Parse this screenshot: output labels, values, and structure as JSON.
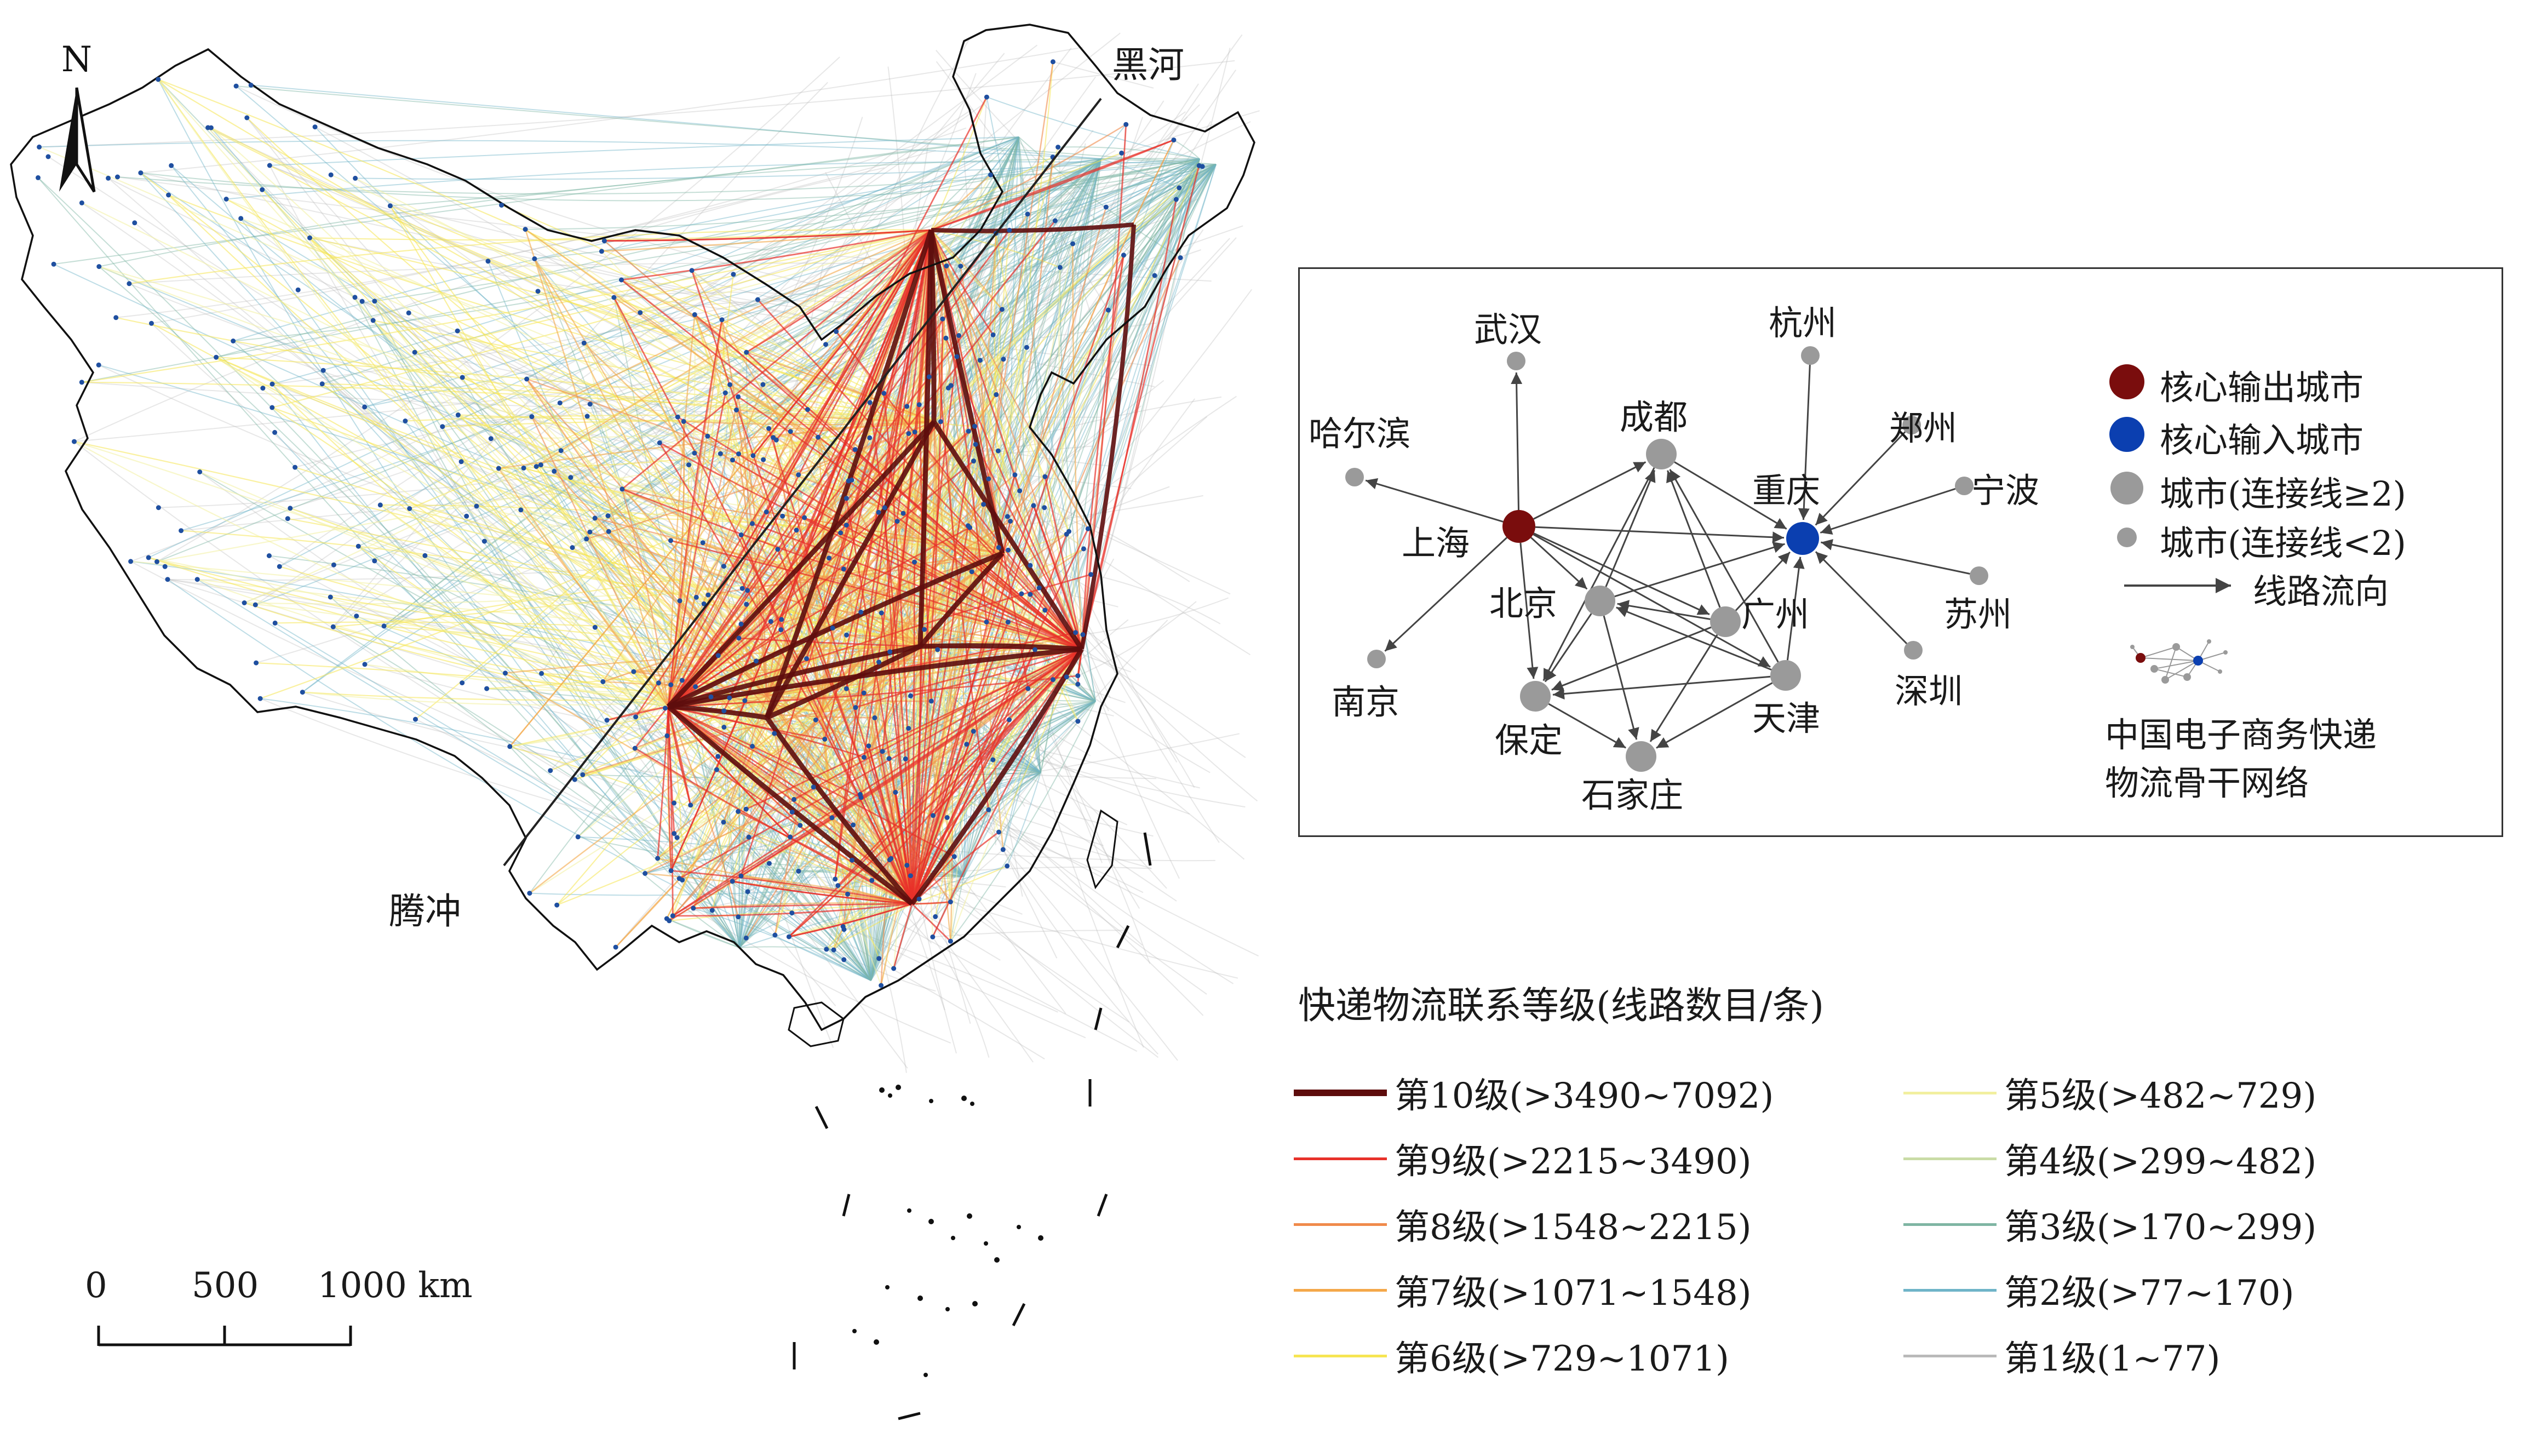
{
  "map": {
    "north_label": "N",
    "city_labels": {
      "heihe": "黑河",
      "tengchong": "腾冲"
    },
    "scale_bar": {
      "tick_0": "0",
      "tick_500": "500",
      "tick_1000": "1000 km"
    },
    "colors": {
      "level10": "#5e0d0d",
      "level9": "#e8312a",
      "level8": "#f08a4b",
      "level7": "#f4a84a",
      "level6": "#f6e552",
      "level5": "#f2f0a0",
      "level4": "#c9dca6",
      "level3": "#7fb5a3",
      "level2": "#6fb4c8",
      "level1": "#b9b9b9",
      "node": "#1f4fa0"
    }
  },
  "inset": {
    "legend": {
      "core_output": "核心输出城市",
      "core_input": "核心输入城市",
      "city_big": "城市(连接线≥2)",
      "city_small": "城市(连接线<2)",
      "flow": "线路流向",
      "caption_line1": "中国电子商务快递",
      "caption_line2": "物流骨干网络"
    },
    "colors": {
      "output": "#7a0d0d",
      "input": "#0b3fb0",
      "city": "#9a9a9a",
      "edge": "#444444"
    },
    "nodes": {
      "wuhan": "武汉",
      "hangzhou": "杭州",
      "harbin": "哈尔滨",
      "chengdu": "成都",
      "zhengzhou": "郑州",
      "chongqing": "重庆",
      "ningbo": "宁波",
      "shanghai": "上海",
      "beijing": "北京",
      "guangzhou": "广州",
      "suzhou": "苏州",
      "nanjing": "南京",
      "tianjin": "天津",
      "shenzhen": "深圳",
      "baoding": "保定",
      "shijiazhuang": "石家庄"
    }
  },
  "legend": {
    "title": "快递物流联系等级(线路数目/条)",
    "items": [
      {
        "label": "第10级(>3490~7092)",
        "color": "#5e0d0d",
        "width": 12
      },
      {
        "label": "第9级(>2215~3490)",
        "color": "#e8312a",
        "width": 5
      },
      {
        "label": "第8级(>1548~2215)",
        "color": "#f08a4b",
        "width": 5
      },
      {
        "label": "第7级(>1071~1548)",
        "color": "#f4a84a",
        "width": 5
      },
      {
        "label": "第6级(>729~1071)",
        "color": "#f6e552",
        "width": 5
      },
      {
        "label": "第5级(>482~729)",
        "color": "#f2f0a0",
        "width": 5
      },
      {
        "label": "第4级(>299~482)",
        "color": "#c9dca6",
        "width": 5
      },
      {
        "label": "第3级(>170~299)",
        "color": "#7fb5a3",
        "width": 5
      },
      {
        "label": "第2级(>77~170)",
        "color": "#6fb4c8",
        "width": 5
      },
      {
        "label": "第1级(1~77)",
        "color": "#b9b9b9",
        "width": 5
      }
    ]
  }
}
